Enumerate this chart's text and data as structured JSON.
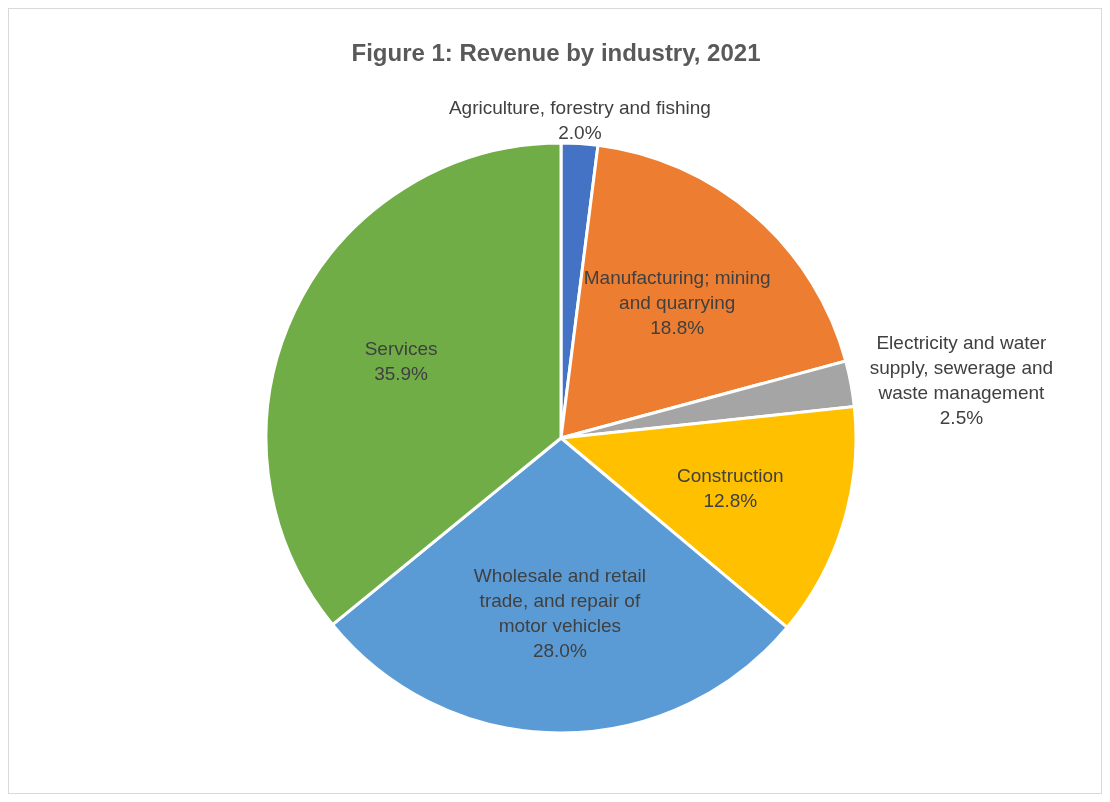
{
  "chart_data": {
    "type": "pie",
    "title": "Figure 1: Revenue by industry, 2021",
    "categories": [
      "Agriculture, forestry and fishing",
      "Manufacturing; mining and quarrying",
      "Electricity and water supply, sewerage and waste management",
      "Construction",
      "Wholesale and retail trade, and repair of motor vehicles",
      "Services"
    ],
    "values": [
      2.0,
      18.8,
      2.5,
      12.8,
      28.0,
      35.9
    ],
    "value_labels": [
      "2.0%",
      "18.8%",
      "2.5%",
      "12.8%",
      "28.0%",
      "35.9%"
    ],
    "colors": [
      "#4472c4",
      "#ed7d31",
      "#a5a5a5",
      "#ffc000",
      "#5b9bd5",
      "#70ad47"
    ],
    "legend": false
  }
}
